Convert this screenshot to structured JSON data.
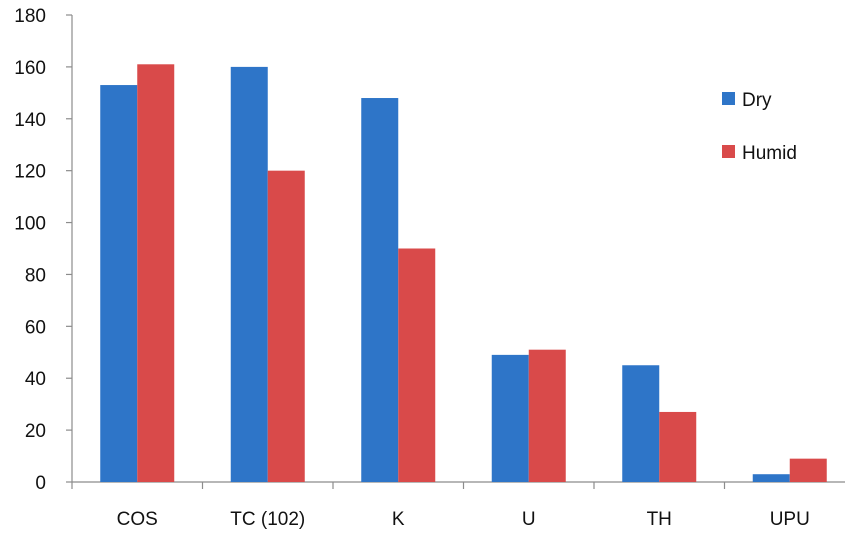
{
  "chart_data": {
    "type": "bar",
    "title": "",
    "xlabel": "",
    "ylabel": "",
    "categories": [
      "COS",
      "TC (102)",
      "K",
      "U",
      "TH",
      "UPU"
    ],
    "series": [
      {
        "name": "Dry",
        "color": "#2e75c8",
        "values": [
          153,
          160,
          148,
          49,
          45,
          3
        ]
      },
      {
        "name": "Humid",
        "color": "#d94a4a",
        "values": [
          161,
          120,
          90,
          51,
          27,
          9
        ]
      }
    ],
    "ylim": [
      0,
      180
    ],
    "yticks": [
      0,
      20,
      40,
      60,
      80,
      100,
      120,
      140,
      160,
      180
    ],
    "grid": false,
    "legend_position": "right"
  }
}
